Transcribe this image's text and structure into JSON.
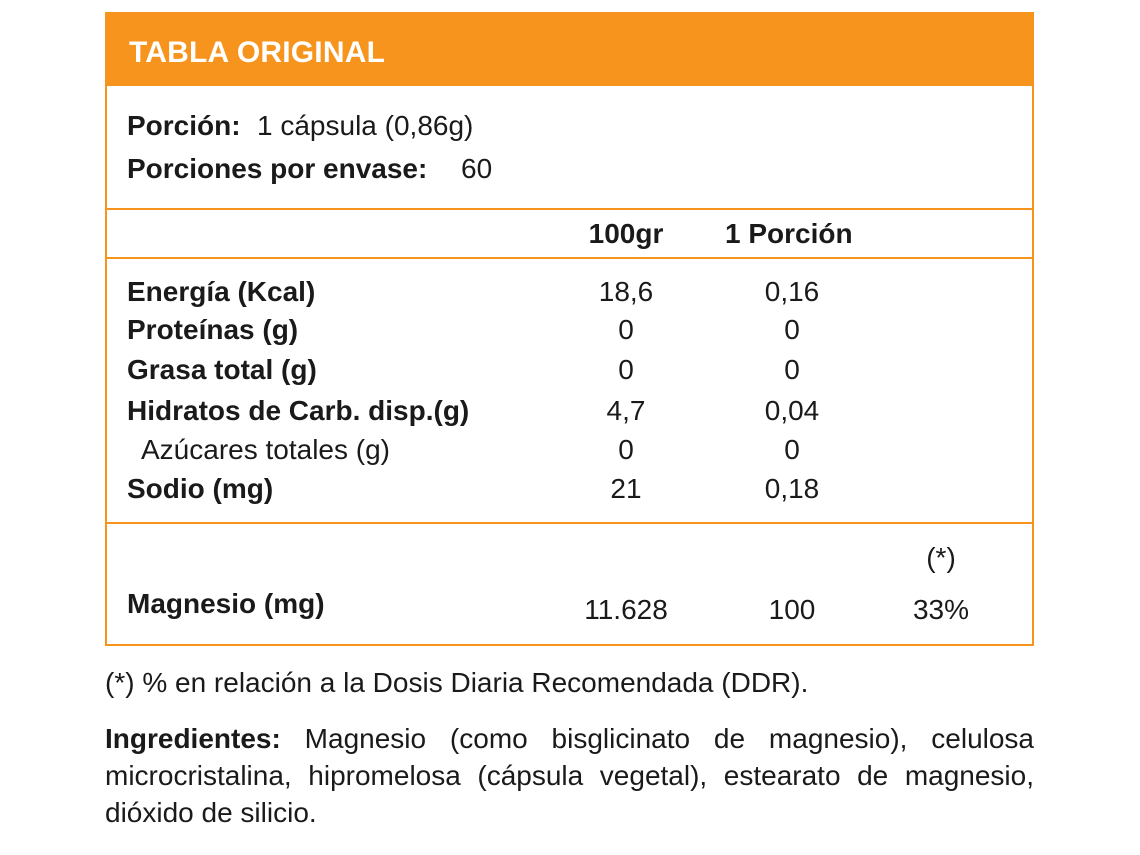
{
  "header": {
    "title": "TABLA ORIGINAL",
    "color": "#f7941d"
  },
  "serving": {
    "portion_label": "Porción:",
    "portion_value": "1 cápsula (0,86g)",
    "per_container_label": "Porciones por envase:",
    "per_container_value": "60"
  },
  "columns": {
    "per100": "100gr",
    "per_portion": "1 Porción"
  },
  "rows": [
    {
      "label": "Energía (Kcal)",
      "per100": "18,6",
      "per_portion": "0,16"
    },
    {
      "label": "Proteínas (g)",
      "per100": "0",
      "per_portion": "0"
    },
    {
      "label": "Grasa total (g)",
      "per100": "0",
      "per_portion": "0"
    },
    {
      "label": "Hidratos de Carb. disp.(g)",
      "per100": "4,7",
      "per_portion": "0,04"
    },
    {
      "label": "Azúcares totales (g)",
      "per100": "0",
      "per_portion": "0"
    },
    {
      "label": "Sodio (mg)",
      "per100": "21",
      "per_portion": "0,18"
    }
  ],
  "mineral": {
    "label": "Magnesio (mg)",
    "per100": "11.628",
    "per_portion": "100",
    "ddr_header": "(*)",
    "ddr": "33%"
  },
  "footnote": "(*) % en relación a la Dosis Diaria Recomendada (DDR).",
  "ingredients": {
    "label": "Ingredientes:",
    "text": "Magnesio (como bisglicinato de magnesio), celulosa microcristalina, hipromelosa (cápsula vegetal), estearato de magnesio, dióxido de silicio."
  }
}
